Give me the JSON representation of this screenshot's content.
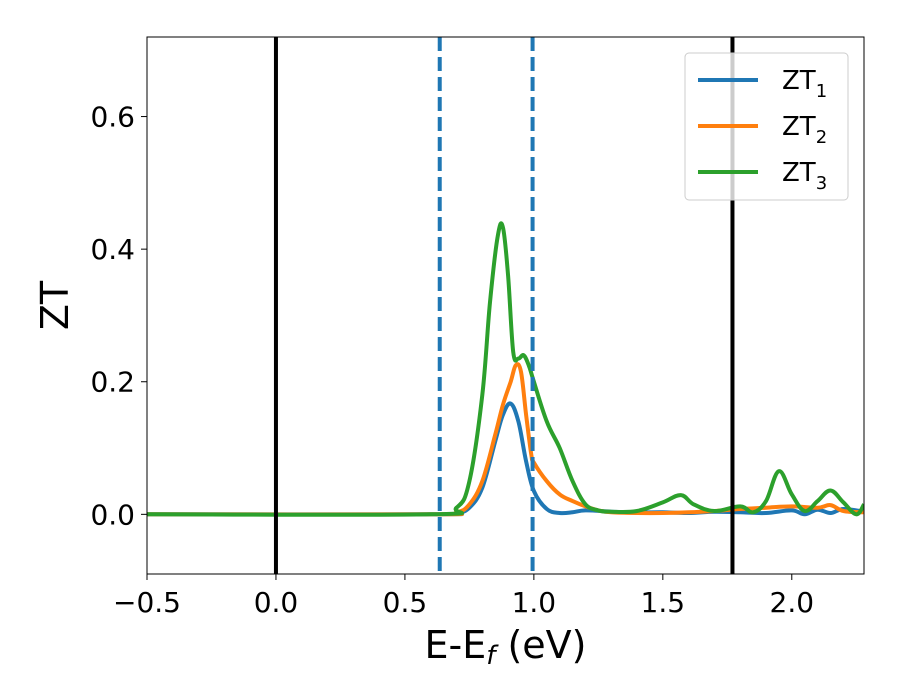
{
  "chart_data": {
    "type": "line",
    "xlabel": "E-E",
    "xlabel_sub": "f",
    "xlabel_unit": " (eV)",
    "ylabel": "ZT",
    "xlim": [
      -0.5,
      2.28
    ],
    "ylim": [
      -0.09,
      0.72
    ],
    "xticks": [
      -0.5,
      0.0,
      0.5,
      1.0,
      1.5,
      2.0
    ],
    "xtick_labels": [
      "−0.5",
      "0.0",
      "0.5",
      "1.0",
      "1.5",
      "2.0"
    ],
    "yticks": [
      0.0,
      0.2,
      0.4,
      0.6
    ],
    "ytick_labels": [
      "0.0",
      "0.2",
      "0.4",
      "0.6"
    ],
    "grid": false,
    "legend_position": "top-right",
    "series": [
      {
        "name": "ZT",
        "sub": "1",
        "color": "#1f77b4",
        "x": [
          -0.5,
          0.6,
          0.7,
          0.75,
          0.8,
          0.85,
          0.88,
          0.91,
          0.94,
          0.97,
          1.0,
          1.05,
          1.1,
          1.15,
          1.2,
          1.3,
          1.4,
          1.5,
          1.6,
          1.7,
          1.8,
          1.9,
          2.0,
          2.05,
          2.1,
          2.15,
          2.2,
          2.28
        ],
        "y": [
          0.0,
          0.0,
          0.002,
          0.01,
          0.04,
          0.11,
          0.15,
          0.167,
          0.14,
          0.08,
          0.035,
          0.008,
          0.002,
          0.003,
          0.006,
          0.004,
          0.003,
          0.003,
          0.002,
          0.004,
          0.003,
          0.002,
          0.006,
          0.0,
          0.007,
          0.002,
          0.008,
          0.004
        ]
      },
      {
        "name": "ZT",
        "sub": "2",
        "color": "#ff7f0e",
        "x": [
          -0.5,
          0.6,
          0.7,
          0.75,
          0.8,
          0.85,
          0.88,
          0.91,
          0.93,
          0.95,
          0.97,
          0.99,
          1.0,
          1.05,
          1.1,
          1.15,
          1.2,
          1.25,
          1.3,
          1.4,
          1.5,
          1.6,
          1.7,
          1.8,
          1.9,
          2.0,
          2.1,
          2.15,
          2.2,
          2.28
        ],
        "y": [
          0.0,
          0.0,
          0.003,
          0.015,
          0.05,
          0.12,
          0.165,
          0.2,
          0.225,
          0.215,
          0.15,
          0.09,
          0.078,
          0.05,
          0.03,
          0.02,
          0.012,
          0.006,
          0.003,
          0.002,
          0.002,
          0.003,
          0.005,
          0.008,
          0.01,
          0.012,
          0.01,
          0.014,
          0.005,
          0.003
        ]
      },
      {
        "name": "ZT",
        "sub": "3",
        "color": "#2ca02c",
        "x": [
          -0.5,
          0.6,
          0.7,
          0.75,
          0.8,
          0.83,
          0.86,
          0.88,
          0.9,
          0.92,
          0.94,
          0.96,
          0.98,
          1.0,
          1.05,
          1.1,
          1.15,
          1.2,
          1.25,
          1.3,
          1.4,
          1.5,
          1.57,
          1.62,
          1.7,
          1.8,
          1.85,
          1.9,
          1.95,
          2.0,
          2.05,
          2.1,
          2.15,
          2.2,
          2.25,
          2.28
        ],
        "y": [
          0.0,
          0.0,
          0.01,
          0.05,
          0.18,
          0.32,
          0.42,
          0.433,
          0.36,
          0.245,
          0.235,
          0.24,
          0.225,
          0.2,
          0.14,
          0.1,
          0.05,
          0.015,
          0.006,
          0.004,
          0.005,
          0.018,
          0.029,
          0.015,
          0.005,
          0.012,
          0.003,
          0.02,
          0.065,
          0.03,
          0.005,
          0.02,
          0.036,
          0.018,
          0.0,
          0.015
        ]
      }
    ],
    "vlines": [
      {
        "x": 0.0,
        "style": "solid",
        "color": "#000000"
      },
      {
        "x": 1.77,
        "style": "solid",
        "color": "#000000"
      },
      {
        "x": 0.635,
        "style": "dashed",
        "color": "#1f77b4"
      },
      {
        "x": 0.995,
        "style": "dashed",
        "color": "#1f77b4"
      }
    ]
  }
}
